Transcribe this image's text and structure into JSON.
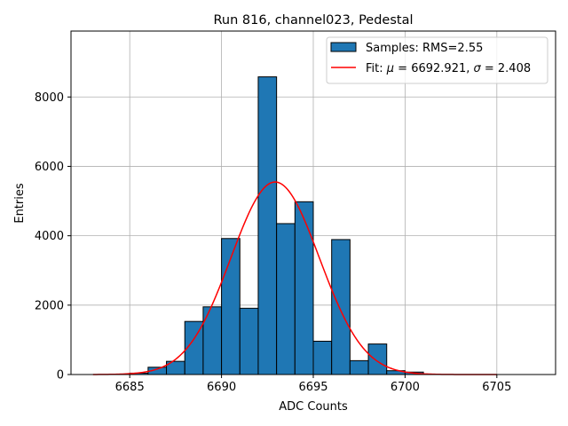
{
  "chart_data": {
    "type": "bar",
    "title": "Run 816, channel023, Pedestal",
    "xlabel": "ADC Counts",
    "ylabel": "Entries",
    "xlim": [
      6681.8,
      6708.2
    ],
    "ylim": [
      0,
      9900
    ],
    "grid": true,
    "legend_position": "top-right",
    "x_ticks": [
      6685,
      6690,
      6695,
      6700,
      6705
    ],
    "y_ticks": [
      0,
      2000,
      4000,
      6000,
      8000
    ],
    "bin_width": 1,
    "bin_edges_start": [
      6685,
      6686,
      6687,
      6688,
      6689,
      6690,
      6691,
      6692,
      6693,
      6694,
      6695,
      6696,
      6697,
      6698,
      6699,
      6700
    ],
    "values": [
      40,
      210,
      380,
      1530,
      1950,
      3920,
      1910,
      8580,
      4350,
      4980,
      960,
      3890,
      400,
      880,
      110,
      70
    ],
    "series": [
      {
        "name": "Samples: RMS=2.55",
        "kind": "histogram",
        "color": "#1f77b4",
        "edge_color": "#000000"
      },
      {
        "name": "Fit: μ = 6692.921, σ = 2.408",
        "kind": "gaussian-fit",
        "color": "#ff0000",
        "mu": 6692.921,
        "sigma": 2.408,
        "amplitude": 5550,
        "x_range": [
          6683,
          6705
        ]
      }
    ]
  },
  "legend": {
    "samples_label": "Samples: RMS=2.55",
    "fit_prefix": "Fit: ",
    "fit_mu_symbol": "μ",
    "fit_mu_text": " = 6692.921, ",
    "fit_sigma_symbol": "σ",
    "fit_sigma_text": " = 2.408"
  }
}
